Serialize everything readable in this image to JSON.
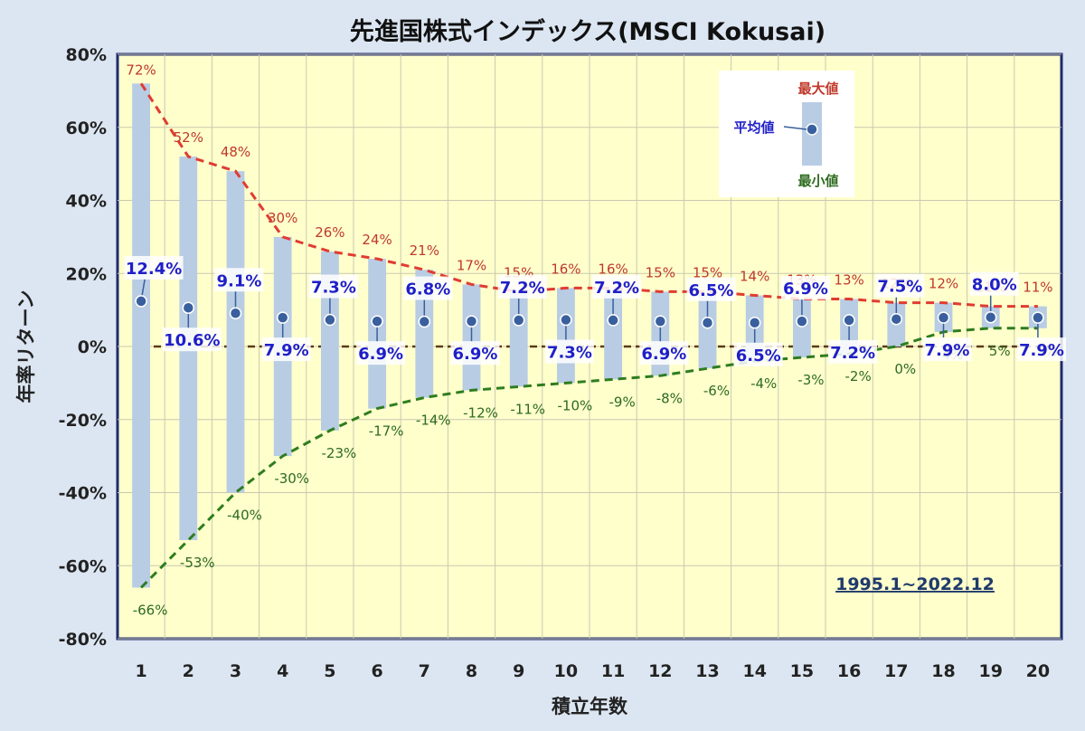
{
  "chart_data": {
    "type": "bar",
    "title": "先進国株式インデックス(MSCI Kokusai)",
    "xlabel": "積立年数",
    "ylabel": "年率リターン",
    "categories": [
      "1",
      "2",
      "3",
      "4",
      "5",
      "6",
      "7",
      "8",
      "9",
      "10",
      "11",
      "12",
      "13",
      "14",
      "15",
      "16",
      "17",
      "18",
      "19",
      "20"
    ],
    "ylim": [
      -80,
      80
    ],
    "yticks": [
      -80,
      -60,
      -40,
      -20,
      0,
      20,
      40,
      60,
      80
    ],
    "ytick_suffix": "%",
    "series": [
      {
        "name": "最大値",
        "values": [
          72,
          52,
          48,
          30,
          26,
          24,
          21,
          17,
          15,
          16,
          16,
          15,
          15,
          14,
          13,
          13,
          12,
          12,
          11,
          11
        ]
      },
      {
        "name": "平均値",
        "values": [
          12.4,
          10.6,
          9.1,
          7.9,
          7.3,
          6.9,
          6.8,
          6.9,
          7.2,
          7.3,
          7.2,
          6.9,
          6.5,
          6.5,
          6.9,
          7.2,
          7.5,
          7.9,
          8.0,
          7.9
        ]
      },
      {
        "name": "最小値",
        "values": [
          -66,
          -53,
          -40,
          -30,
          -23,
          -17,
          -14,
          -12,
          -11,
          -10,
          -9,
          -8,
          -6,
          -4,
          -3,
          -2,
          0,
          4,
          5,
          5
        ]
      }
    ],
    "avg_label_placement": [
      "above",
      "below",
      "above",
      "below",
      "above",
      "below",
      "above",
      "below",
      "above",
      "below",
      "above",
      "below",
      "above",
      "below",
      "above",
      "below",
      "above",
      "below",
      "above",
      "below"
    ],
    "legend": {
      "position": "top-right",
      "max": "最大値",
      "avg": "平均値",
      "min": "最小値"
    },
    "annotation": "1995.1~2022.12",
    "colors": {
      "bar": "#b8cce4",
      "max_line": "#e03c31",
      "min_line": "#2e7d1f",
      "avg_point": "#3a5f9e",
      "avg_text": "#1f1fc8",
      "plot_bg": "#ffffcc",
      "frame": "#1f2a6e",
      "zero_line": "#5a3a1a"
    },
    "grid": true
  }
}
